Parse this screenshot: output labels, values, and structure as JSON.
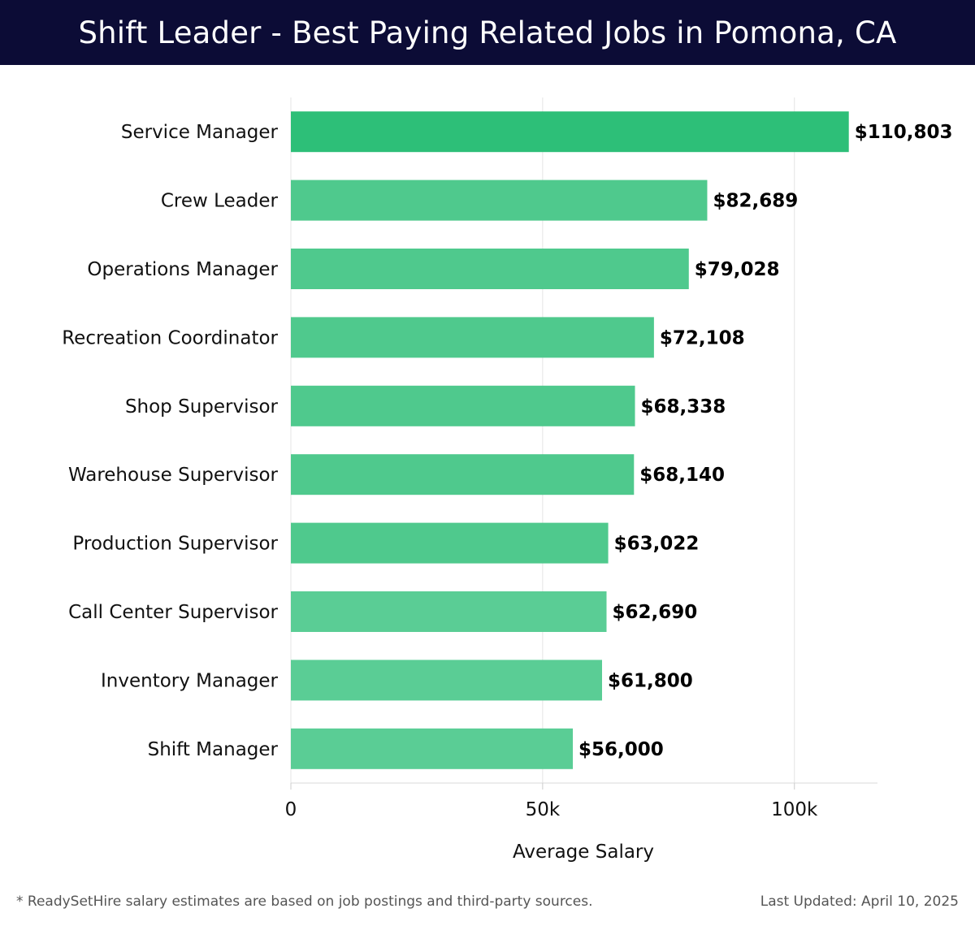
{
  "header": {
    "title": "Shift Leader - Best Paying Related Jobs in Pomona, CA"
  },
  "chart_data": {
    "type": "bar",
    "orientation": "horizontal",
    "categories": [
      "Service Manager",
      "Crew Leader",
      "Operations Manager",
      "Recreation Coordinator",
      "Shop Supervisor",
      "Warehouse Supervisor",
      "Production Supervisor",
      "Call Center Supervisor",
      "Inventory Manager",
      "Shift Manager"
    ],
    "values": [
      110803,
      82689,
      79028,
      72108,
      68338,
      68140,
      63022,
      62690,
      61800,
      56000
    ],
    "value_labels": [
      "$110,803",
      "$82,689",
      "$79,028",
      "$72,108",
      "$68,338",
      "$68,140",
      "$63,022",
      "$62,690",
      "$61,800",
      "$56,000"
    ],
    "xlabel": "Average Salary",
    "xlim": [
      0,
      116500
    ],
    "xticks": [
      0,
      50000,
      100000
    ],
    "xtick_labels": [
      "0",
      "50k",
      "100k"
    ],
    "grid": true,
    "colors": {
      "top_bar": "#2dbf78",
      "bar": "#4fc98d",
      "bar_light": "#5acd95",
      "header_bg": "#0c0c36"
    }
  },
  "footer": {
    "note": "* ReadySetHire salary estimates are based on job postings and third-party sources.",
    "updated": "Last Updated: April 10, 2025"
  }
}
